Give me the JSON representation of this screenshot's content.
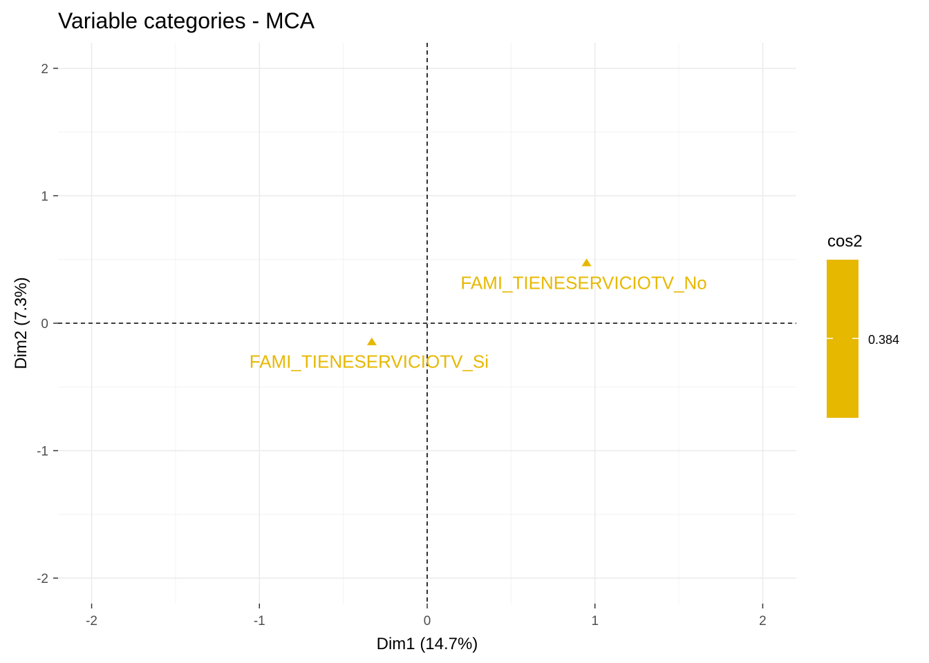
{
  "chart_data": {
    "type": "scatter",
    "title": "Variable categories - MCA",
    "xlabel": "Dim1 (14.7%)",
    "ylabel": "Dim2 (7.3%)",
    "xlim": [
      -2.2,
      2.2
    ],
    "ylim": [
      -2.2,
      2.2
    ],
    "xticks": [
      -2,
      -1,
      0,
      1,
      2
    ],
    "yticks": [
      -2,
      -1,
      0,
      1,
      2
    ],
    "xtick_labels": [
      "-2",
      "-1",
      "0",
      "1",
      "2"
    ],
    "ytick_labels": [
      "-2",
      "-1",
      "0",
      "1",
      "2"
    ],
    "grid": true,
    "reference_lines": {
      "x": 0,
      "y": 0,
      "style": "dashed"
    },
    "marker": "triangle",
    "color": "#E7B800",
    "points": [
      {
        "label": "FAMI_TIENESERVICIOTV_No",
        "x": 0.95,
        "y": 0.47,
        "cos2": 0.384
      },
      {
        "label": "FAMI_TIENESERVICIOTV_Si",
        "x": -0.33,
        "y": -0.15,
        "cos2": 0.384
      }
    ],
    "legend": {
      "title": "cos2",
      "placement": "right",
      "tick_value": "0.384",
      "color": "#E7B800"
    }
  }
}
